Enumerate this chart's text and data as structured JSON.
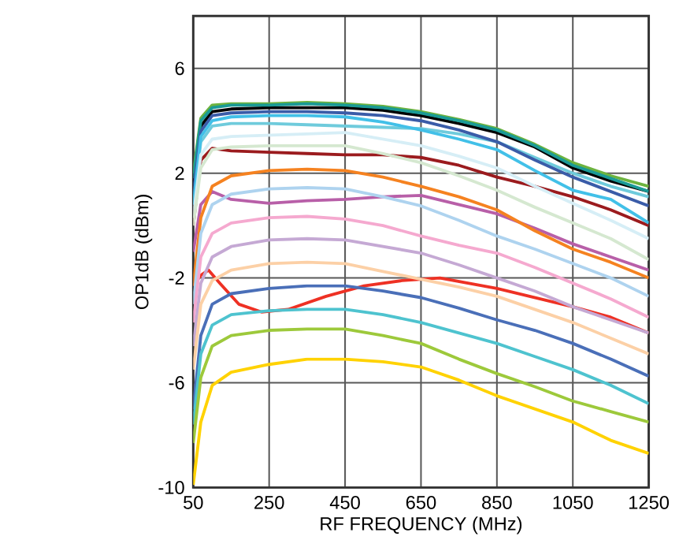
{
  "chart_data": {
    "type": "line",
    "xlabel": "RF FREQUENCY (MHz)",
    "ylabel": "OP1dB (dBm)",
    "xlim": [
      50,
      1250
    ],
    "xticks": [
      50,
      250,
      450,
      650,
      850,
      1050,
      1250
    ],
    "ylim": [
      -10,
      8
    ],
    "yticks": [
      -10,
      -6,
      -2,
      2,
      6
    ],
    "grid": true,
    "marker": "none",
    "line_style": "solid",
    "x": [
      50,
      70,
      100,
      150,
      250,
      350,
      450,
      550,
      650,
      750,
      850,
      950,
      1050,
      1150,
      1250
    ],
    "series": [
      {
        "color": "#ee3124",
        "x": [
          50,
          70,
          90,
          120,
          170,
          230,
          300,
          400,
          500,
          600,
          700,
          850,
          1050,
          1150,
          1250
        ],
        "values": [
          -2.3,
          -1.9,
          -1.7,
          -2.2,
          -3.0,
          -3.3,
          -3.2,
          -2.7,
          -2.3,
          -2.1,
          -2.0,
          -2.4,
          -3.1,
          -3.5,
          -4.1
        ]
      },
      {
        "color": "#b85fa8",
        "values": [
          -1.0,
          0.8,
          1.3,
          1.0,
          0.85,
          0.95,
          1.0,
          1.1,
          1.15,
          0.8,
          0.45,
          -0.1,
          -0.7,
          -1.2,
          -1.7
        ]
      },
      {
        "color": "#9b1b1e",
        "values": [
          0.0,
          2.5,
          2.95,
          2.85,
          2.8,
          2.75,
          2.7,
          2.7,
          2.6,
          2.3,
          1.85,
          1.5,
          1.1,
          0.6,
          0.0
        ]
      },
      {
        "color": "#6fcbdc",
        "values": [
          0.8,
          3.2,
          3.8,
          3.9,
          3.9,
          3.85,
          3.8,
          3.75,
          3.7,
          3.5,
          3.2,
          2.6,
          2.0,
          1.5,
          1.1
        ]
      },
      {
        "color": "#000000",
        "values": [
          1.5,
          3.8,
          4.35,
          4.45,
          4.5,
          4.5,
          4.5,
          4.4,
          4.2,
          3.9,
          3.55,
          3.0,
          2.2,
          1.7,
          1.3
        ]
      },
      {
        "color": "#6db33f",
        "values": [
          2.0,
          4.1,
          4.6,
          4.65,
          4.65,
          4.7,
          4.65,
          4.55,
          4.35,
          4.05,
          3.7,
          3.1,
          2.4,
          1.9,
          1.5
        ]
      },
      {
        "color": "#1a9a96",
        "values": [
          1.8,
          4.0,
          4.5,
          4.6,
          4.6,
          4.65,
          4.6,
          4.5,
          4.3,
          4.0,
          3.65,
          3.05,
          2.3,
          1.8,
          1.3
        ]
      },
      {
        "color": "#3a5ca8",
        "values": [
          1.2,
          3.6,
          4.2,
          4.3,
          4.35,
          4.35,
          4.3,
          4.2,
          4.0,
          3.65,
          3.2,
          2.5,
          1.85,
          1.3,
          0.75
        ]
      },
      {
        "color": "#42c0e8",
        "values": [
          0.8,
          3.4,
          4.0,
          4.15,
          4.2,
          4.2,
          4.15,
          3.95,
          3.65,
          3.3,
          2.9,
          2.1,
          1.35,
          1.0,
          0.1
        ]
      },
      {
        "color": "#d6eef6",
        "values": [
          0.3,
          2.7,
          3.3,
          3.4,
          3.45,
          3.5,
          3.55,
          3.3,
          3.05,
          2.65,
          2.2,
          1.5,
          0.85,
          0.2,
          -0.5
        ]
      },
      {
        "color": "#d5e8d0",
        "values": [
          0.0,
          2.2,
          2.9,
          3.0,
          3.05,
          3.05,
          3.05,
          2.75,
          2.4,
          1.9,
          1.35,
          0.7,
          0.1,
          -0.5,
          -1.3
        ]
      },
      {
        "color": "#f58220",
        "values": [
          -2.3,
          0.3,
          1.5,
          1.9,
          2.1,
          2.15,
          2.1,
          1.85,
          1.5,
          1.1,
          0.6,
          -0.2,
          -0.9,
          -1.4,
          -2.0
        ]
      },
      {
        "color": "#aed3ef",
        "values": [
          -3.0,
          -0.3,
          0.8,
          1.2,
          1.4,
          1.45,
          1.4,
          1.1,
          0.75,
          0.2,
          -0.4,
          -0.9,
          -1.45,
          -2.0,
          -2.7
        ]
      },
      {
        "color": "#f5a9cf",
        "values": [
          -3.7,
          -1.2,
          -0.3,
          0.1,
          0.3,
          0.35,
          0.25,
          0.0,
          -0.4,
          -0.75,
          -1.05,
          -1.6,
          -2.2,
          -2.8,
          -3.5
        ]
      },
      {
        "color": "#c5a9d4",
        "values": [
          -4.6,
          -2.2,
          -1.2,
          -0.8,
          -0.55,
          -0.5,
          -0.55,
          -0.8,
          -1.05,
          -1.5,
          -2.0,
          -2.5,
          -3.1,
          -3.6,
          -4.1
        ]
      },
      {
        "color": "#fcd0a6",
        "values": [
          -5.5,
          -3.0,
          -2.1,
          -1.7,
          -1.45,
          -1.4,
          -1.45,
          -1.75,
          -2.05,
          -2.35,
          -2.7,
          -3.2,
          -3.7,
          -4.3,
          -4.9
        ]
      },
      {
        "color": "#4a6fb8",
        "values": [
          -7.0,
          -4.2,
          -3.0,
          -2.6,
          -2.4,
          -2.3,
          -2.3,
          -2.5,
          -2.75,
          -3.15,
          -3.6,
          -4.0,
          -4.5,
          -5.1,
          -5.75
        ]
      },
      {
        "color": "#4ec3cf",
        "values": [
          -7.6,
          -4.9,
          -3.8,
          -3.4,
          -3.25,
          -3.2,
          -3.2,
          -3.4,
          -3.7,
          -4.1,
          -4.5,
          -5.0,
          -5.5,
          -6.1,
          -6.8
        ]
      },
      {
        "color": "#9dc93b",
        "values": [
          -8.3,
          -5.8,
          -4.6,
          -4.2,
          -4.0,
          -3.95,
          -3.95,
          -4.2,
          -4.5,
          -5.1,
          -5.65,
          -6.15,
          -6.7,
          -7.1,
          -7.5
        ]
      },
      {
        "color": "#ffd200",
        "values": [
          -9.9,
          -7.5,
          -6.1,
          -5.6,
          -5.3,
          -5.1,
          -5.1,
          -5.2,
          -5.4,
          -5.9,
          -6.5,
          -7.0,
          -7.5,
          -8.2,
          -8.7
        ]
      }
    ]
  }
}
